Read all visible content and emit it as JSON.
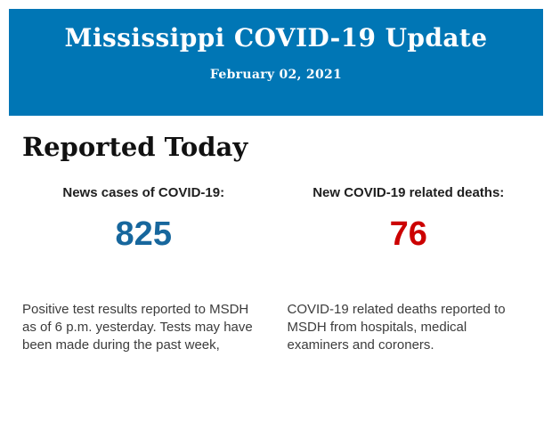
{
  "header": {
    "title": "Mississippi COVID-19 Update",
    "date": "February 02, 2021",
    "background_color": "#0076b5",
    "text_color": "#ffffff"
  },
  "section": {
    "heading": "Reported Today"
  },
  "stats": {
    "cases": {
      "label": "News cases of COVID-19:",
      "value": "825",
      "value_color": "#17679d",
      "description": "Positive test results reported to MSDH as of 6 p.m. yesterday. Tests may have been made during the past week,"
    },
    "deaths": {
      "label": "New COVID-19 related deaths:",
      "value": "76",
      "value_color": "#cc0000",
      "description": "COVID-19 related deaths reported to MSDH from hospitals, medical examiners and coroners."
    }
  }
}
